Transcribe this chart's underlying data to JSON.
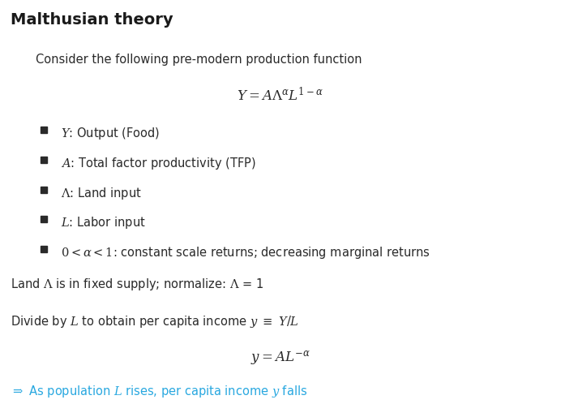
{
  "title": "Malthusian theory",
  "bg_color": "#ffffff",
  "title_color": "#1a1a1a",
  "title_fontsize": 14,
  "dark_color": "#2a2a2a",
  "blue_color": "#3a78b5",
  "cyan_color": "#29a8e0"
}
